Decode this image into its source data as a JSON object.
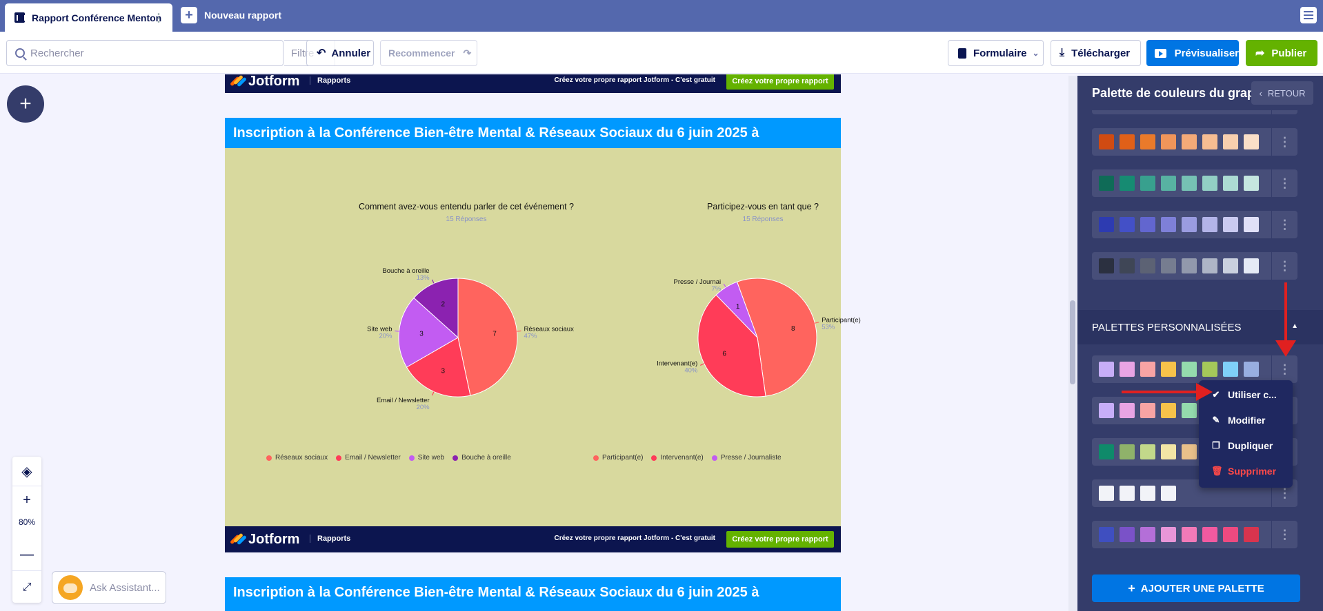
{
  "tabs": {
    "active": "Rapport Conférence Menton",
    "new": "Nouveau rapport"
  },
  "toolbar": {
    "search_placeholder": "Rechercher",
    "filter_label": "Filtre",
    "undo_label": "Annuler",
    "redo_label": "Recommencer",
    "form_label": "Formulaire",
    "download_label": "Télécharger",
    "preview_label": "Prévisualiser",
    "publish_label": "Publier"
  },
  "zoom": {
    "level": "80%"
  },
  "assistant": {
    "placeholder": "Ask Assistant..."
  },
  "report": {
    "brand": "Jotform",
    "brand_sub": "Rapports",
    "cta_text": "Créez votre propre rapport Jotform - C'est gratuit",
    "cta_button": "Créez votre propre rapport",
    "title": "Inscription à la Conférence Bien-être Mental & Réseaux Sociaux du 6 juin 2025 à"
  },
  "chart_data": [
    {
      "type": "pie",
      "title": "Comment avez-vous entendu parler de cet événement ?",
      "subtitle": "15 Réponses",
      "categories": [
        "Réseaux sociaux",
        "Email / Newsletter",
        "Site web",
        "Bouche à oreille"
      ],
      "values": [
        7,
        3,
        3,
        2
      ],
      "percent_labels": [
        "47%",
        "20%",
        "20%",
        "13%"
      ],
      "colors": [
        "#ff645e",
        "#ff3c58",
        "#c25cf2",
        "#8b22b0"
      ],
      "legend_position": "bottom"
    },
    {
      "type": "pie",
      "title": "Participez-vous en tant que ?",
      "subtitle": "15 Réponses",
      "categories": [
        "Participant(e)",
        "Intervenant(e)",
        "Presse / Journaliste"
      ],
      "slice_labels": [
        "Participant(e)",
        "Intervenant(e)",
        "Presse / Journai"
      ],
      "values": [
        8,
        6,
        1
      ],
      "percent_labels": [
        "53%",
        "40%",
        "7%"
      ],
      "colors": [
        "#ff645e",
        "#ff3c58",
        "#c25cf2"
      ],
      "legend_position": "bottom"
    }
  ],
  "panel": {
    "title": "Palette de couleurs du graphique",
    "back_label": "RETOUR",
    "custom_header": "PALETTES PERSONNALISÉES",
    "add_palette_label": "AJOUTER UNE PALETTE",
    "default_palettes": [
      [
        "#253046",
        "#364152",
        "#6b7a6a",
        "#a9a468",
        "#d8cc8a",
        "#a8b55d",
        "#6f8e3a",
        "#3e5a2a"
      ],
      [
        "#d04b12",
        "#e06018",
        "#ea7a2a",
        "#f0955a",
        "#f4aa78",
        "#f6bd92",
        "#f8cfae",
        "#fadfc8"
      ],
      [
        "#0f6b57",
        "#168b72",
        "#38a08e",
        "#58b2a2",
        "#76c2b4",
        "#92cfc4",
        "#acdbd3",
        "#c5e6e0"
      ],
      [
        "#2d3bb1",
        "#4350c7",
        "#6266cf",
        "#7e80d8",
        "#9a9ce0",
        "#b3b4e8",
        "#cacaf0",
        "#e0e0f7"
      ],
      [
        "#2b3040",
        "#3f4656",
        "#5c6274",
        "#767d90",
        "#9299ac",
        "#aeb5c6",
        "#cad0de",
        "#e5eaf5"
      ]
    ],
    "custom_palettes": [
      [
        "#c7aef8",
        "#e8a4e4",
        "#f8a4a4",
        "#f7c24a",
        "#94dbad",
        "#a5c85a",
        "#7fd0f8",
        "#98aee0"
      ],
      [
        "#c7aef8",
        "#e8a4e4",
        "#f8a4a4",
        "#f7c24a",
        "#94dbad",
        "#a5c85a",
        "#7fd0f8",
        "#98aee0"
      ],
      [
        "#0f8a6a",
        "#8fb26a",
        "#c2d88a",
        "#f2e5a5",
        "#e8c08a",
        "#e8a070",
        "#d88a60",
        "#c07050"
      ],
      [
        "#f2f3f8",
        "#f2f3f8",
        "#f2f3f8",
        "#f2f3f8"
      ],
      [
        "#3f4fc0",
        "#7a52c8",
        "#b46fd8",
        "#e896d8",
        "#f27ab8",
        "#f25aa0",
        "#ee4a80",
        "#d8344e"
      ]
    ]
  },
  "context_menu": {
    "items": [
      "Utiliser c...",
      "Modifier",
      "Dupliquer",
      "Supprimer"
    ]
  }
}
